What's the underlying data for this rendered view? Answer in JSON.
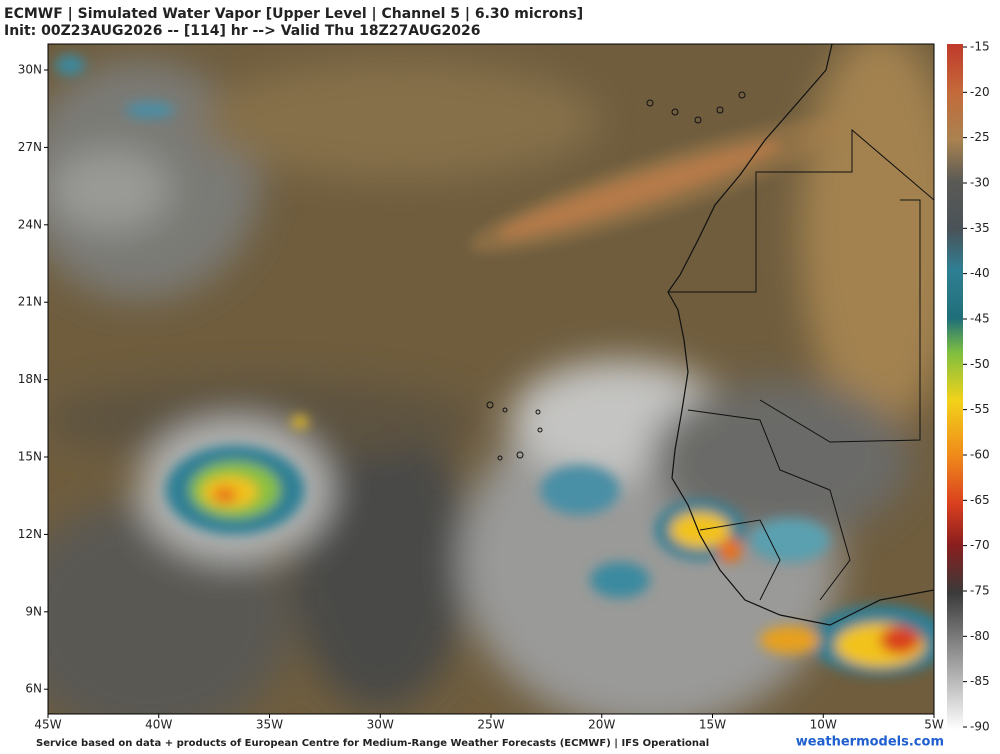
{
  "header": {
    "title": "ECMWF | Simulated Water Vapor [Upper Level | Channel 5 | 6.30 microns]",
    "subtitle": "Init: 00Z23AUG2026 -- [114] hr --> Valid Thu 18Z27AUG2026"
  },
  "map": {
    "lat_labels": [
      "30N",
      "27N",
      "24N",
      "21N",
      "18N",
      "15N",
      "12N",
      "9N",
      "6N"
    ],
    "lon_labels": [
      "45W",
      "40W",
      "35W",
      "30W",
      "25W",
      "20W",
      "15W",
      "10W",
      "5W"
    ]
  },
  "colorbar": {
    "ticks": [
      -15,
      -20,
      -25,
      -30,
      -35,
      -40,
      -45,
      -50,
      -55,
      -60,
      -65,
      -70,
      -75,
      -80,
      -85,
      -90
    ]
  },
  "footer": {
    "credit": "Service based on data + products of European Centre for Medium-Range Weather Forecasts (ECMWF) | IFS Operational",
    "site": "weathermodels.com"
  }
}
